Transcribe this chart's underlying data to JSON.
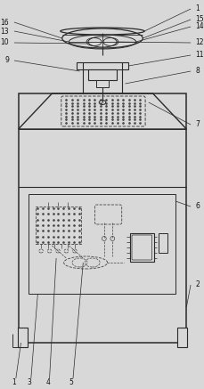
{
  "bg_color": "#d8d8d8",
  "line_color": "#2a2a2a",
  "dashed_color": "#444444",
  "label_color": "#111111",
  "figsize": [
    2.3,
    4.37
  ],
  "dpi": 100
}
